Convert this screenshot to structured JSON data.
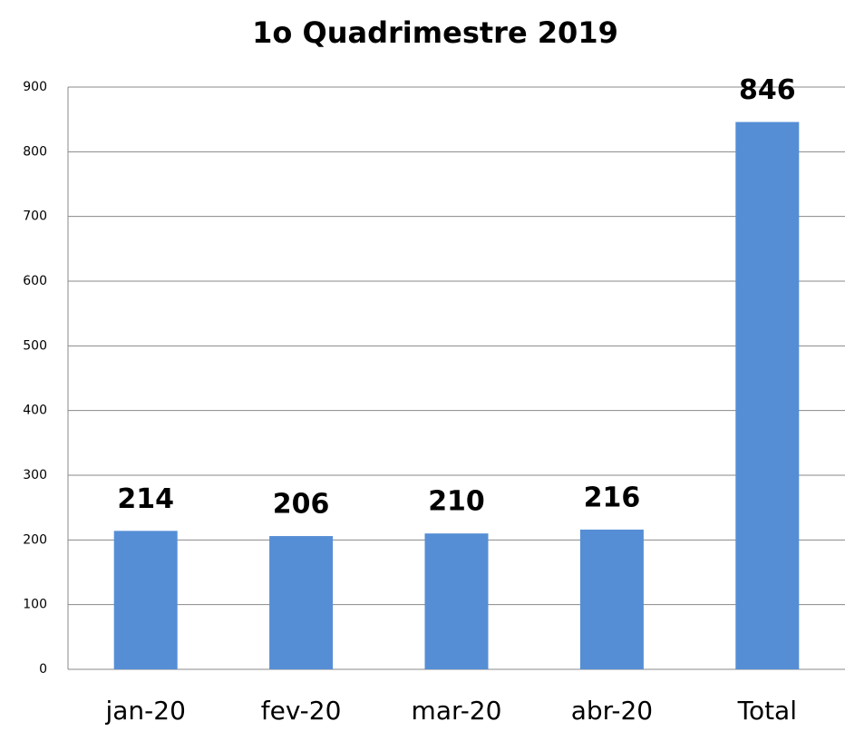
{
  "chart_data": {
    "type": "bar",
    "title": "1o Quadrimestre 2019",
    "categories": [
      "jan-20",
      "fev-20",
      "mar-20",
      "abr-20",
      "Total"
    ],
    "values": [
      214,
      206,
      210,
      216,
      846
    ],
    "color": "#558ed5",
    "ylim": [
      0,
      900
    ],
    "yticks": [
      0,
      100,
      200,
      300,
      400,
      500,
      600,
      700,
      800,
      900
    ],
    "grid": true
  }
}
